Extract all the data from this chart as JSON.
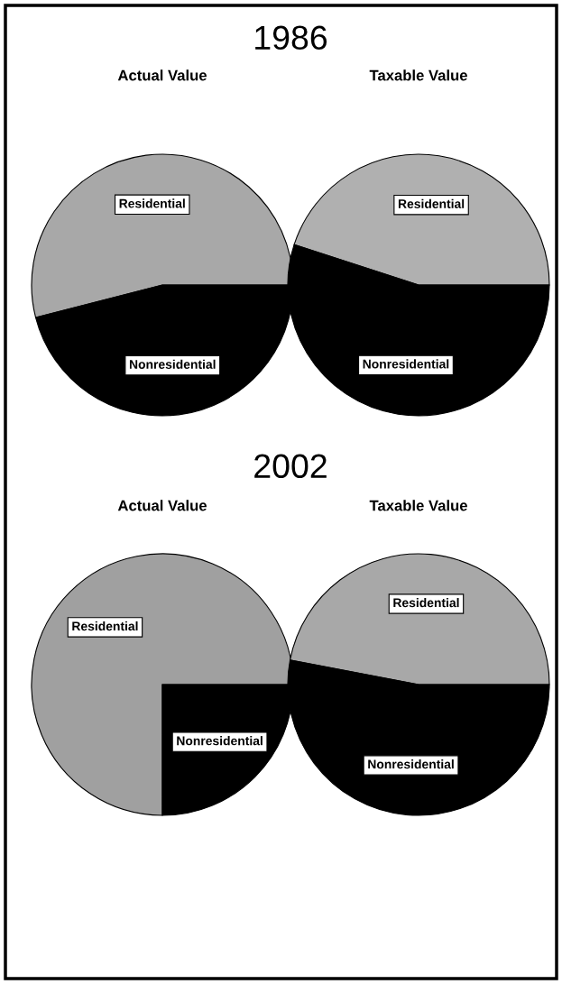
{
  "chart_data": [
    {
      "type": "pie",
      "title": "Actual Value",
      "annotations": [
        "1986"
      ],
      "categories": [
        "Residential",
        "Nonresidential"
      ],
      "values": [
        54,
        46
      ],
      "colors": [
        "#a8a8a8",
        "#000000"
      ]
    },
    {
      "type": "pie",
      "title": "Taxable Value",
      "categories": [
        "Residential",
        "Nonresidential"
      ],
      "values": [
        45,
        55
      ],
      "colors": [
        "#b0b0b0",
        "#000000"
      ]
    },
    {
      "type": "pie",
      "title": "Actual Value",
      "annotations": [
        "2002"
      ],
      "categories": [
        "Residential",
        "Nonresidential"
      ],
      "values": [
        75,
        25
      ],
      "colors": [
        "#a0a0a0",
        "#000000"
      ]
    },
    {
      "type": "pie",
      "title": "Taxable Value",
      "categories": [
        "Residential",
        "Nonresidential"
      ],
      "values": [
        47,
        53
      ],
      "colors": [
        "#a8a8a8",
        "#000000"
      ]
    }
  ]
}
